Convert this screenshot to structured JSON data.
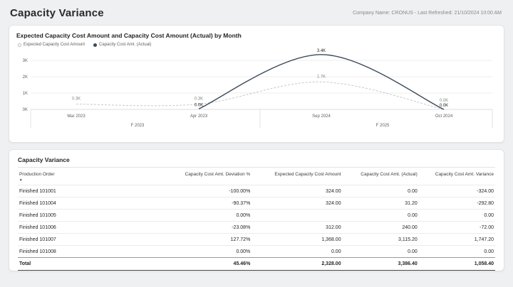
{
  "header": {
    "title": "Capacity Variance",
    "meta": "Company Name: CRONUS - Last Refreshed: 21/10/2024 10:00 AM"
  },
  "chart_data": {
    "type": "line",
    "title": "Expected Capacity Cost Amount and Capacity Cost Amount (Actual) by Month",
    "x": [
      "Mar 2023",
      "Apr 2023",
      "Sep 2024",
      "Oct 2024"
    ],
    "x_groups": [
      {
        "label": "F 2023",
        "span": [
          0,
          1
        ]
      },
      {
        "label": "F 2025",
        "span": [
          2,
          3
        ]
      }
    ],
    "y_ticks": [
      "0K",
      "1K",
      "2K",
      "3K"
    ],
    "ylim": [
      0,
      3400
    ],
    "grid": true,
    "legend_position": "top-left",
    "series": [
      {
        "name": "Expected Capacity Cost Amount",
        "values": [
          324,
          324,
          1680,
          0
        ],
        "labels": [
          "0.3K",
          "0.3K",
          "1.7K",
          "0.0K"
        ],
        "style": "dashed",
        "color": "#c6c9cc",
        "label_color": "#8a8886"
      },
      {
        "name": "Capacity Cost Amt. (Actual)",
        "values": [
          null,
          31.2,
          3355.2,
          0
        ],
        "labels": [
          null,
          "0.0K",
          "3.4K",
          "0.0K"
        ],
        "style": "solid",
        "color": "#3b4a58",
        "label_color": "#252423"
      }
    ]
  },
  "table": {
    "title": "Capacity Variance",
    "sort_column": "Production Order",
    "columns": [
      "Production Order",
      "Capacity Cost Amt. Deviation %",
      "Expected Capacity Cost Amount",
      "Capacity Cost Amt. (Actual)",
      "Capacity Cost Amt. Variance"
    ],
    "rows": [
      [
        "Finished 101001",
        "-100.00%",
        "324.00",
        "0.00",
        "-324.00"
      ],
      [
        "Finished 101004",
        "-90.37%",
        "324.00",
        "31.20",
        "-292.80"
      ],
      [
        "Finished 101005",
        "0.00%",
        "",
        "0.00",
        "0.00"
      ],
      [
        "Finished 101006",
        "-23.08%",
        "312.00",
        "240.00",
        "-72.00"
      ],
      [
        "Finished 101007",
        "127.72%",
        "1,368.00",
        "3,115.20",
        "1,747.20"
      ],
      [
        "Finished 101008",
        "0.00%",
        "0.00",
        "0.00",
        "0.00"
      ]
    ],
    "total": [
      "Total",
      "45.46%",
      "2,328.00",
      "3,386.40",
      "1,058.40"
    ]
  }
}
